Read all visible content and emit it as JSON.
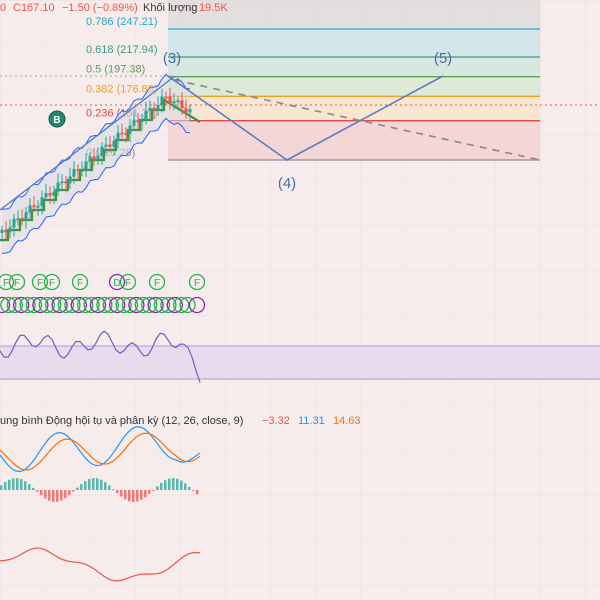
{
  "header": {
    "prefix": "0",
    "close_label": "C167.10",
    "change": "−1.50 (−0.89%)",
    "volume_label": "Khối lượng",
    "volume_value": "19.5K"
  },
  "colors": {
    "up": "#26a69a",
    "down": "#ef5350",
    "bb": "#2962ff",
    "trend": "#4a8f3a",
    "wave": "#5a7ec0",
    "rsi": "#7e57c2",
    "macd": "#2196f3",
    "signal": "#ff6d00"
  },
  "fib_levels": [
    {
      "label": "0.786 (247.21)",
      "ratio": 0.786,
      "price": 247.21,
      "color": "#2aa5c7"
    },
    {
      "label": "0.618 (217.94)",
      "ratio": 0.618,
      "price": 217.94,
      "color": "#3e9b84"
    },
    {
      "label": "0.5 (197.38)",
      "ratio": 0.5,
      "price": 197.38,
      "color": "#5aa25a"
    },
    {
      "label": "0.382 (176.83)",
      "ratio": 0.382,
      "price": 176.83,
      "color": "#f0a020"
    },
    {
      "label": "0.236 (151.37)",
      "ratio": 0.236,
      "price": 151.37,
      "color": "#e54848"
    },
    {
      "label": "0 (110.28)",
      "ratio": 0,
      "price": 110.28,
      "color": "#8a8a9a"
    }
  ],
  "wave_labels": [
    "(3)",
    "(4)",
    "(5)"
  ],
  "b_marker": "B",
  "signal_marks": {
    "top_row": [
      "F",
      "F",
      "F",
      "F",
      "F",
      "D",
      "F",
      "F",
      "F"
    ],
    "bottom_row": [
      "D",
      "D",
      "D",
      "D",
      "D",
      "D",
      "D",
      "D",
      "D",
      "D",
      "D",
      "D",
      "D",
      "D",
      "D",
      "D",
      "D",
      "D",
      "D",
      "D",
      "D",
      "D",
      "D",
      "D",
      "D",
      "D",
      "D",
      "D",
      "D",
      "D",
      "D"
    ]
  },
  "macd_legend": {
    "title": "ung bình Động hội tụ và phân kỳ (12, 26, close, 9)",
    "hist_value": "−3.32",
    "macd_value": "11.31",
    "signal_value": "14.63"
  },
  "chart_data": {
    "type": "candlestick",
    "title": "",
    "close": 167.1,
    "change": -1.5,
    "change_pct": -0.89,
    "volume": "19.5K",
    "fib_retracement": [
      {
        "ratio": 0.786,
        "price": 247.21
      },
      {
        "ratio": 0.618,
        "price": 217.94
      },
      {
        "ratio": 0.5,
        "price": 197.38
      },
      {
        "ratio": 0.382,
        "price": 176.83
      },
      {
        "ratio": 0.236,
        "price": 151.37
      },
      {
        "ratio": 0,
        "price": 110.28
      }
    ],
    "indicators": [
      {
        "name": "MACD (12, 26, close, 9)",
        "histogram": -3.32,
        "macd": 11.31,
        "signal": 14.63
      }
    ]
  }
}
